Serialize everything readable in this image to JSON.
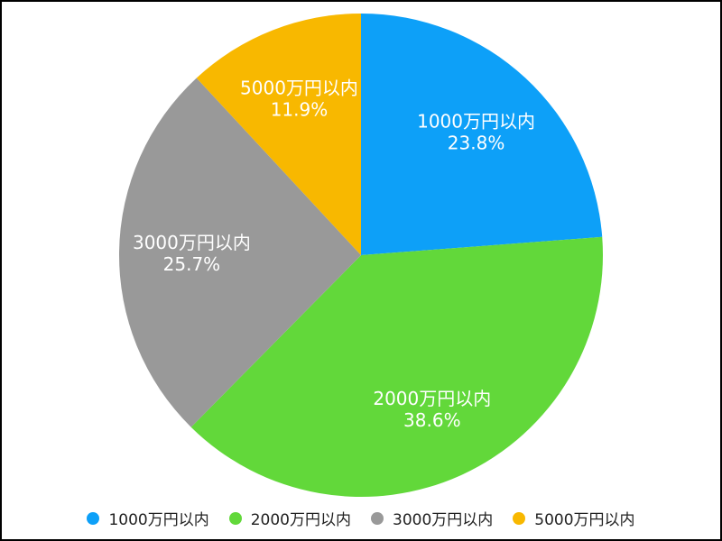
{
  "chart_data": {
    "type": "pie",
    "start": "top",
    "direction": "clockwise",
    "legend_position": "bottom",
    "slices": [
      {
        "label": "1000万円以内",
        "value": 23.8,
        "value_label": "23.8%",
        "color": "#0da0f8"
      },
      {
        "label": "2000万円以内",
        "value": 38.6,
        "value_label": "38.6%",
        "color": "#62d83a"
      },
      {
        "label": "3000万円以内",
        "value": 25.7,
        "value_label": "25.7%",
        "color": "#999999"
      },
      {
        "label": "5000万円以内",
        "value": 11.9,
        "value_label": "11.9%",
        "color": "#f8b800"
      }
    ]
  }
}
